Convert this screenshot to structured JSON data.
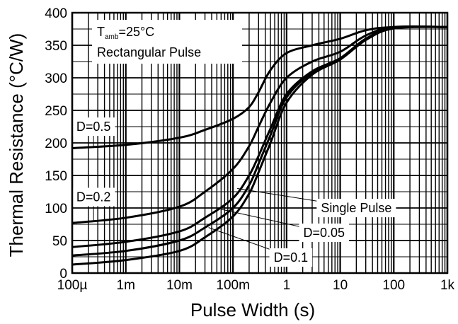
{
  "chart_data": {
    "type": "line",
    "xlabel": "Pulse Width (s)",
    "ylabel": "Thermal Resistance (°C/W)",
    "xscale": "log",
    "xlim": [
      0.0001,
      1000
    ],
    "ylim": [
      0,
      400
    ],
    "grid": true,
    "x_tick_labels": [
      "100µ",
      "1m",
      "10m",
      "100m",
      "1",
      "10",
      "100",
      "1k"
    ],
    "y_tick_labels": [
      "0",
      "50",
      "100",
      "150",
      "200",
      "250",
      "300",
      "350",
      "400"
    ],
    "conditions": {
      "temp_symbol": "T",
      "temp_subscript": "amb",
      "temp_value": "=25°C",
      "pulse": "Rectangular Pulse"
    },
    "series": [
      {
        "name": "D=0.5",
        "x": [
          0.0001,
          0.001,
          0.01,
          0.03,
          0.1,
          0.2,
          0.3,
          0.5,
          1,
          3,
          10,
          30,
          100,
          1000
        ],
        "y": [
          192,
          197,
          208,
          220,
          237,
          255,
          278,
          312,
          338,
          350,
          360,
          373,
          378,
          378
        ]
      },
      {
        "name": "D=0.2",
        "x": [
          0.0001,
          0.001,
          0.01,
          0.03,
          0.1,
          0.2,
          0.3,
          0.5,
          1,
          3,
          10,
          30,
          100,
          1000
        ],
        "y": [
          77,
          85,
          102,
          125,
          160,
          195,
          225,
          262,
          300,
          325,
          340,
          365,
          378,
          378
        ]
      },
      {
        "name": "D=0.1",
        "x": [
          0.0001,
          0.001,
          0.01,
          0.03,
          0.1,
          0.2,
          0.3,
          0.5,
          1,
          3,
          10,
          30,
          100,
          1000
        ],
        "y": [
          40,
          48,
          64,
          85,
          115,
          150,
          180,
          222,
          275,
          310,
          330,
          360,
          377,
          378
        ]
      },
      {
        "name": "D=0.05",
        "x": [
          0.0001,
          0.001,
          0.01,
          0.03,
          0.1,
          0.2,
          0.3,
          0.5,
          1,
          3,
          10,
          30,
          100,
          1000
        ],
        "y": [
          27,
          34,
          50,
          70,
          100,
          135,
          168,
          212,
          270,
          308,
          330,
          360,
          377,
          378
        ]
      },
      {
        "name": "Single Pulse",
        "x": [
          0.0001,
          0.001,
          0.01,
          0.03,
          0.1,
          0.2,
          0.3,
          0.5,
          1,
          3,
          10,
          30,
          100,
          1000
        ],
        "y": [
          13,
          20,
          34,
          55,
          87,
          122,
          155,
          200,
          262,
          305,
          328,
          358,
          376,
          378
        ]
      }
    ],
    "callouts": [
      {
        "series": "D=0.5",
        "label": "D=0.5",
        "label_x": 0.00025,
        "label_y": 226,
        "target_x": 0.00025,
        "target_y": 193
      },
      {
        "series": "D=0.2",
        "label": "D=0.2",
        "label_x": 0.00025,
        "label_y": 118,
        "target_x": 0.00025,
        "target_y": 79
      },
      {
        "series": "Single Pulse",
        "label": "Single Pulse",
        "label_x": 20,
        "label_y": 101,
        "target_x": 0.12,
        "target_y": 130
      },
      {
        "series": "D=0.05",
        "label": "D=0.05",
        "label_x": 5,
        "label_y": 63,
        "target_x": 0.06,
        "target_y": 98
      },
      {
        "series": "D=0.1",
        "label": "D=0.1",
        "label_x": 1.2,
        "label_y": 25,
        "target_x": 0.035,
        "target_y": 70
      }
    ]
  }
}
